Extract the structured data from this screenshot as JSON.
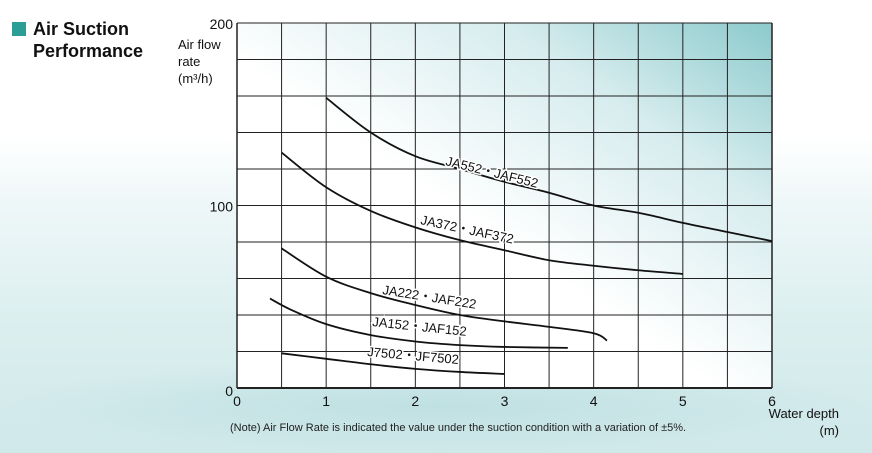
{
  "title": "Air Suction Performance",
  "accent_color": "#2a9d96",
  "note": "(Note) Air Flow Rate is indicated the value under the suction condition with a variation of ±5%.",
  "chart_data": {
    "type": "line",
    "title": "Air Suction Performance",
    "ylabel": [
      "Air flow",
      "rate",
      "(m³/h)"
    ],
    "xlabel": [
      "Water depth",
      "(m)"
    ],
    "xlim": [
      0,
      6
    ],
    "ylim": [
      0,
      200
    ],
    "x_ticks": [
      "0",
      "1",
      "2",
      "3",
      "4",
      "5",
      "6"
    ],
    "y_ticks": [
      "0",
      "100",
      "200"
    ],
    "y_zero_label": "0",
    "grid": true,
    "grid_x_step": 0.5,
    "grid_y_step": 20,
    "series": [
      {
        "name": "JA552・JAF552",
        "x": [
          1.0,
          1.5,
          2.0,
          2.5,
          3.0,
          3.5,
          4.0,
          4.5,
          5.0,
          5.5,
          6.0
        ],
        "y": [
          159,
          140,
          127,
          120,
          113,
          107,
          100,
          96,
          90.5,
          85.5,
          80.5
        ]
      },
      {
        "name": "JA372・JAF372",
        "x": [
          0.5,
          1.0,
          1.5,
          2.0,
          2.5,
          3.0,
          3.5,
          4.0,
          4.5,
          5.0
        ],
        "y": [
          129,
          110,
          97,
          88,
          81,
          75.5,
          70,
          67,
          64.5,
          62.5
        ]
      },
      {
        "name": "JA222・JAF222",
        "x": [
          0.5,
          1.0,
          1.5,
          2.0,
          2.5,
          3.0,
          3.5,
          4.0,
          4.15
        ],
        "y": [
          76.5,
          61,
          52,
          45.5,
          40,
          36.5,
          33.5,
          30,
          26
        ]
      },
      {
        "name": "JA152・JAF152",
        "x": [
          0.37,
          0.6,
          1.0,
          1.5,
          2.0,
          2.5,
          3.0,
          3.71
        ],
        "y": [
          49,
          43,
          35,
          29,
          25.5,
          23.5,
          22.5,
          22
        ]
      },
      {
        "name": "J7502・JF7502",
        "x": [
          0.5,
          1.0,
          1.5,
          2.0,
          2.5,
          3.0
        ],
        "y": [
          19,
          16,
          13,
          10.5,
          8.8,
          7.7
        ]
      }
    ]
  }
}
